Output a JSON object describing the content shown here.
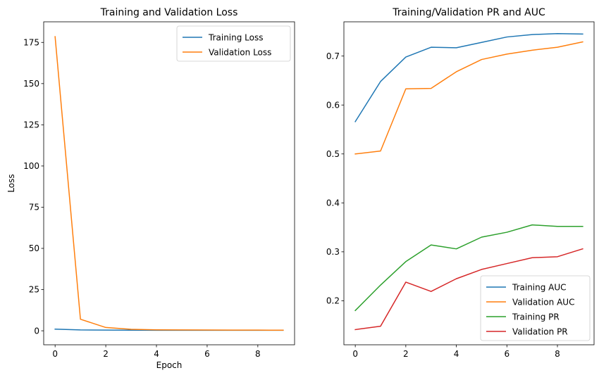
{
  "chart_data": [
    {
      "type": "line",
      "title": "Training and Validation Loss",
      "xlabel": "Epoch",
      "ylabel": "Loss",
      "x": [
        0,
        1,
        2,
        3,
        4,
        5,
        6,
        7,
        8,
        9
      ],
      "xlim": [
        -0.45,
        9.45
      ],
      "ylim": [
        -8.5,
        187.5
      ],
      "xticks": [
        0,
        2,
        4,
        6,
        8
      ],
      "yticks": [
        0,
        25,
        50,
        75,
        100,
        125,
        150,
        175
      ],
      "grid": false,
      "legend_position": "upper right",
      "series": [
        {
          "name": "Training Loss",
          "color": "#1f77b4",
          "values": [
            1.0,
            0.5,
            0.4,
            0.35,
            0.3,
            0.3,
            0.3,
            0.3,
            0.3,
            0.3
          ]
        },
        {
          "name": "Validation Loss",
          "color": "#ff7f0e",
          "values": [
            178.5,
            7.0,
            2.0,
            0.9,
            0.6,
            0.5,
            0.45,
            0.4,
            0.4,
            0.35
          ]
        }
      ]
    },
    {
      "type": "line",
      "title": "Training/Validation PR and AUC",
      "xlabel": "",
      "ylabel": "",
      "x": [
        0,
        1,
        2,
        3,
        4,
        5,
        6,
        7,
        8,
        9
      ],
      "xlim": [
        -0.45,
        9.45
      ],
      "ylim": [
        0.11,
        0.77
      ],
      "xticks": [
        0,
        2,
        4,
        6,
        8
      ],
      "yticks": [
        0.2,
        0.3,
        0.4,
        0.5,
        0.6,
        0.7
      ],
      "grid": false,
      "legend_position": "lower right",
      "series": [
        {
          "name": "Training AUC",
          "color": "#1f77b4",
          "values": [
            0.566,
            0.648,
            0.698,
            0.718,
            0.717,
            0.728,
            0.739,
            0.744,
            0.746,
            0.745
          ]
        },
        {
          "name": "Validation AUC",
          "color": "#ff7f0e",
          "values": [
            0.5,
            0.506,
            0.633,
            0.634,
            0.668,
            0.693,
            0.704,
            0.712,
            0.718,
            0.729
          ]
        },
        {
          "name": "Training PR",
          "color": "#2ca02c",
          "values": [
            0.18,
            0.232,
            0.28,
            0.314,
            0.306,
            0.33,
            0.34,
            0.355,
            0.352,
            0.352
          ]
        },
        {
          "name": "Validation PR",
          "color": "#d62728",
          "values": [
            0.141,
            0.148,
            0.238,
            0.219,
            0.245,
            0.264,
            0.276,
            0.288,
            0.29,
            0.306
          ]
        }
      ]
    }
  ]
}
